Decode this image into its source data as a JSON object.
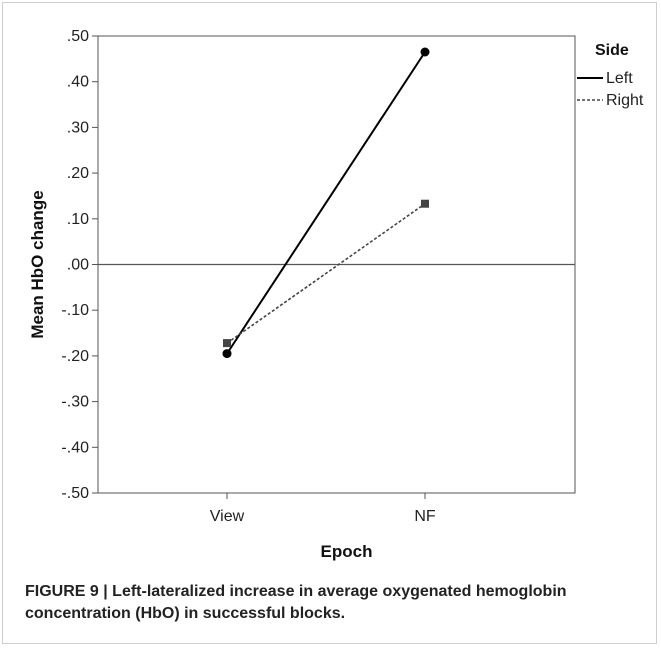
{
  "caption": {
    "label": "FIGURE 9 |",
    "text": "Left-lateralized increase in average oxygenated hemoglobin concentration (HbO) in successful blocks."
  },
  "chart_data": {
    "type": "line",
    "categories": [
      "View",
      "NF"
    ],
    "xlabel": "Epoch",
    "ylabel": "Mean HbO change",
    "ylim": [
      -0.5,
      0.5
    ],
    "yticks": [
      ".50",
      ".40",
      ".30",
      ".20",
      ".10",
      ".00",
      "-.10",
      "-.20",
      "-.30",
      "-.40",
      "-.50"
    ],
    "ytick_values": [
      0.5,
      0.4,
      0.3,
      0.2,
      0.1,
      0.0,
      -0.1,
      -0.2,
      -0.3,
      -0.4,
      -0.5
    ],
    "reference_line": 0.0,
    "legend": {
      "title": "Side",
      "placement": "right"
    },
    "series": [
      {
        "name": "Left",
        "values": [
          -0.195,
          0.465
        ],
        "style": "solid",
        "marker": "circle",
        "color": "#000000"
      },
      {
        "name": "Right",
        "values": [
          -0.172,
          0.133
        ],
        "style": "dotted",
        "marker": "square",
        "color": "#444444"
      }
    ]
  }
}
